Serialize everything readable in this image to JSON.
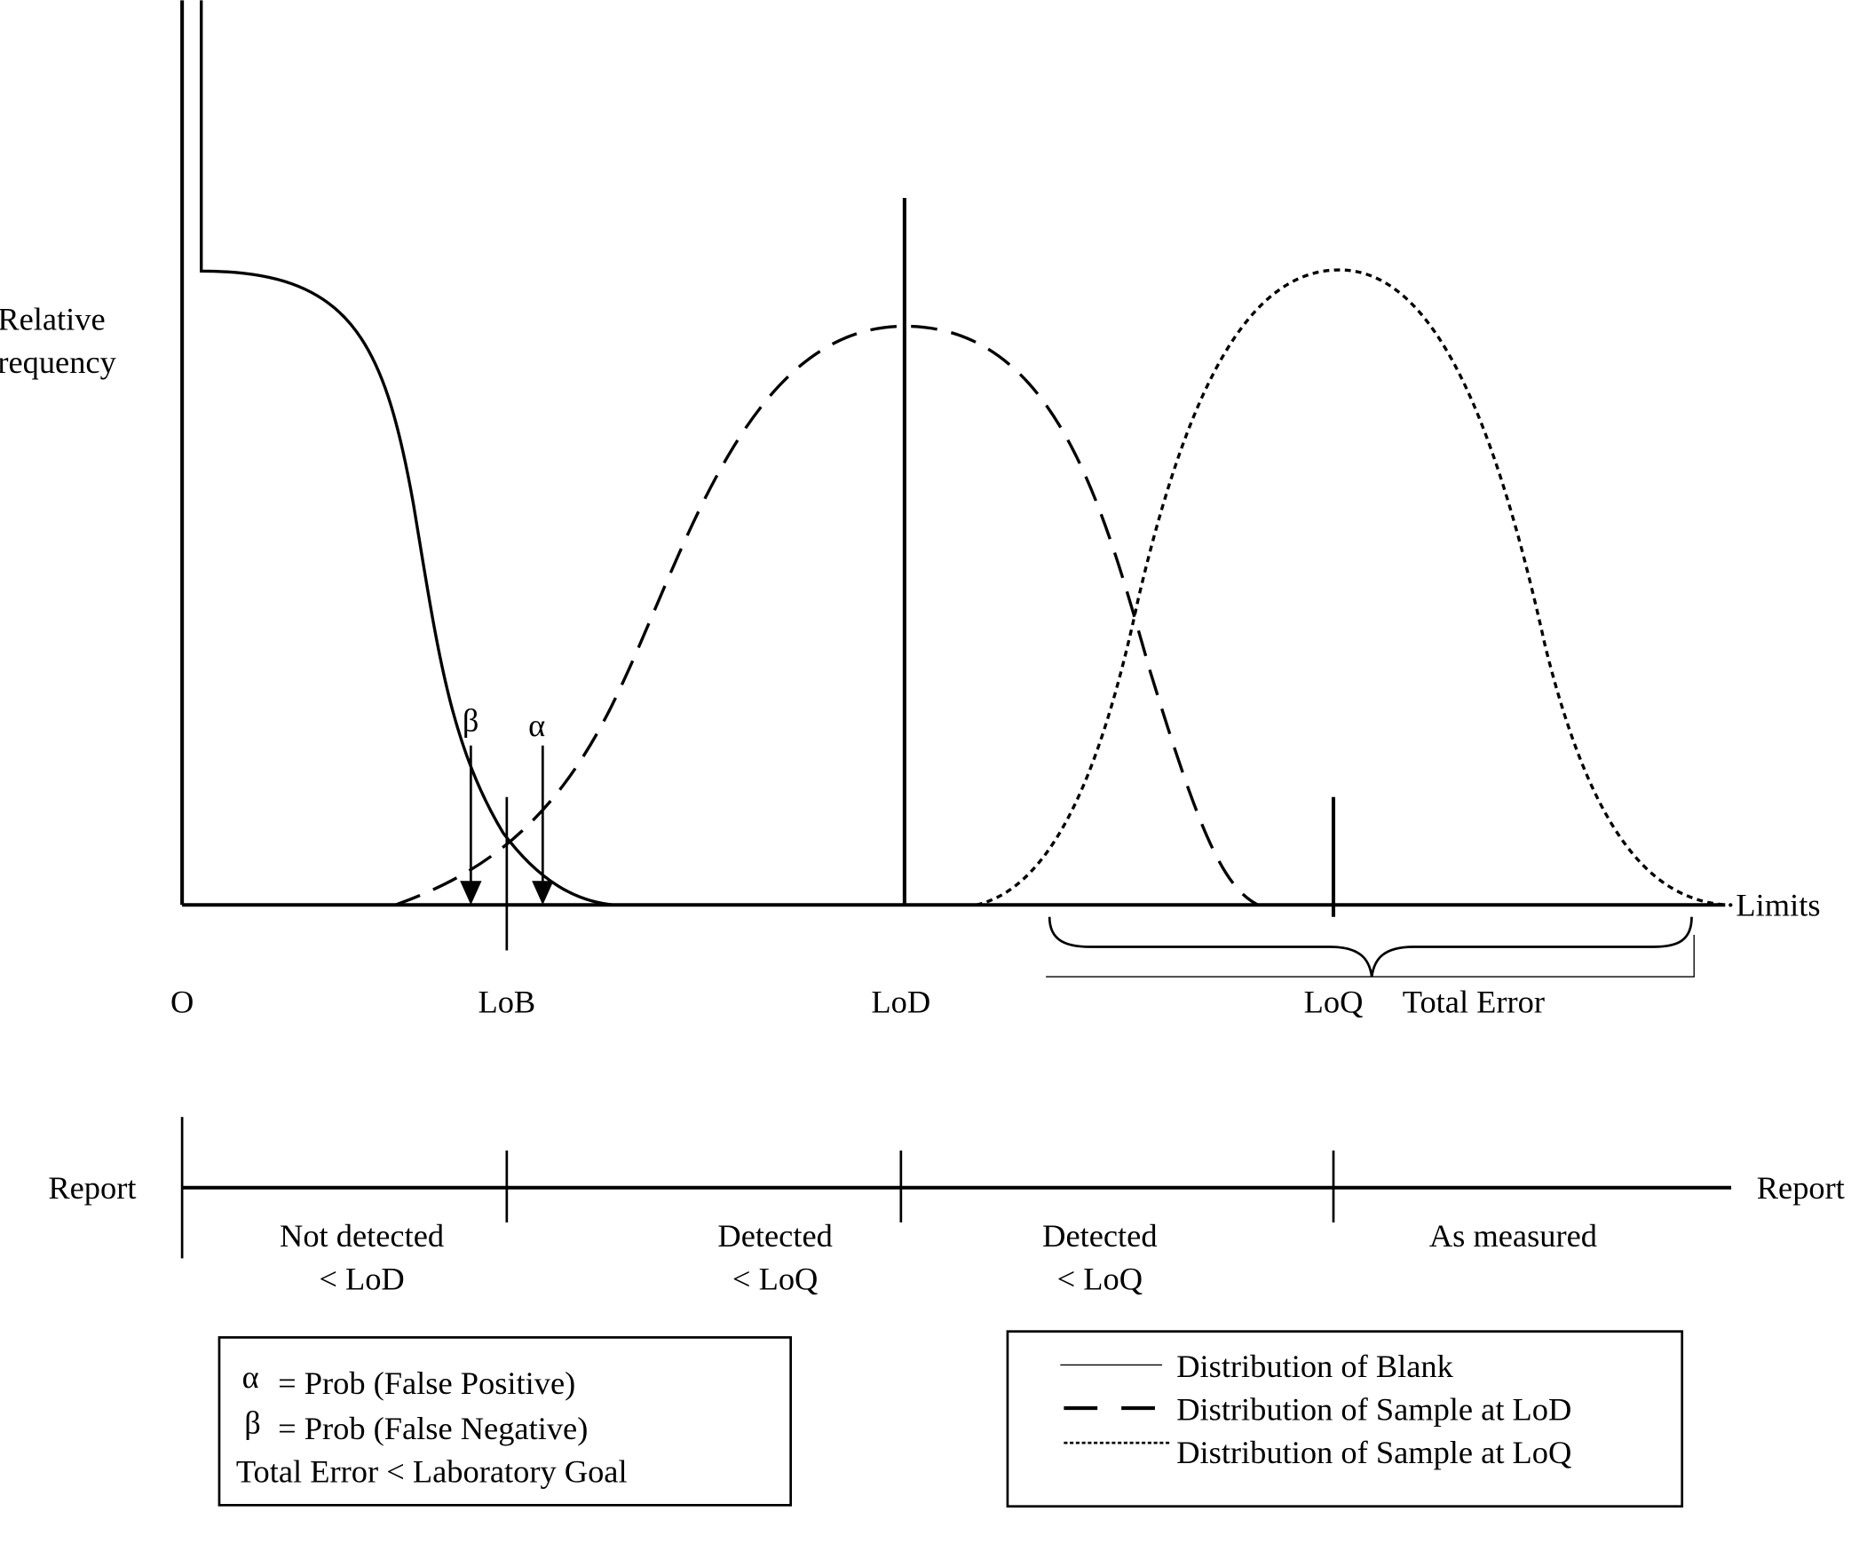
{
  "axis": {
    "y_label_line1": "Relative",
    "y_label_line2": "requency",
    "x_end_label": "·Limits",
    "origin_label": "O"
  },
  "markers": {
    "lob": "LoB",
    "lod": "LoD",
    "loq": "LoQ",
    "total_error": "Total Error",
    "beta": "β",
    "alpha": "α"
  },
  "report": {
    "left_label": "Report",
    "right_label": "Report",
    "regions": [
      {
        "line1": "Not detected",
        "line2": "< LoD"
      },
      {
        "line1": "Detected",
        "line2": "< LoQ"
      },
      {
        "line1": "Detected",
        "line2": "< LoQ"
      },
      {
        "line1": "As measured",
        "line2": ""
      }
    ]
  },
  "definitions": {
    "alpha_symbol": "α",
    "alpha_text": "= Prob  (False Positive)",
    "beta_symbol": "β",
    "beta_text": "= Prob  (False Negative)",
    "goal_text": "Total Error < Laboratory Goal"
  },
  "legend": [
    {
      "style": "solid",
      "label": "Distribution of Blank"
    },
    {
      "style": "dashed",
      "label": "Distribution of Sample at LoD"
    },
    {
      "style": "dotted",
      "label": "Distribution of Sample at LoQ"
    }
  ],
  "colors": {
    "ink": "#000000",
    "background": "#ffffff"
  }
}
